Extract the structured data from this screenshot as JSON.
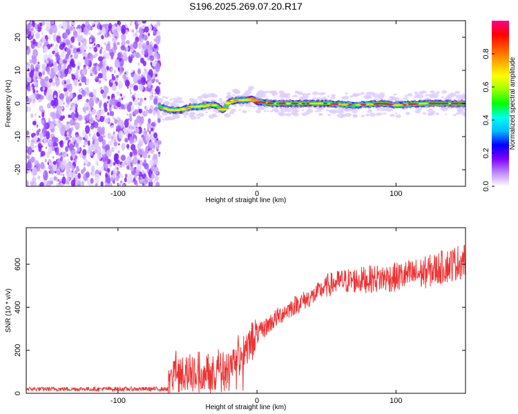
{
  "title": "S196.2025.269.07.20.R17",
  "chart_data": [
    {
      "type": "heatmap",
      "name": "spectrogram",
      "xlabel": "Height of straight line (km)",
      "ylabel": "Frequency (Hz)",
      "xlim": [
        -166,
        150
      ],
      "ylim": [
        -25,
        25
      ],
      "xticks": [
        -100,
        0,
        100
      ],
      "yticks": [
        -20,
        -10,
        0,
        10,
        20
      ],
      "noise_region_x": [
        -166,
        -70
      ],
      "signal_start_x": -70,
      "signal_track": [
        [
          -70,
          -1
        ],
        [
          -62,
          -2
        ],
        [
          -55,
          -2
        ],
        [
          -48,
          -1
        ],
        [
          -42,
          -1
        ],
        [
          -36,
          -0.5
        ],
        [
          -30,
          -0.5
        ],
        [
          -24,
          -2
        ],
        [
          -20,
          0.5
        ],
        [
          -14,
          1
        ],
        [
          -8,
          1
        ],
        [
          -4,
          1.5
        ],
        [
          0,
          0.5
        ],
        [
          10,
          0
        ],
        [
          30,
          0
        ],
        [
          50,
          0
        ],
        [
          70,
          -0.5
        ],
        [
          90,
          0
        ],
        [
          100,
          -0.5
        ],
        [
          110,
          -0.2
        ],
        [
          120,
          0
        ],
        [
          135,
          0
        ],
        [
          150,
          0
        ]
      ],
      "colorbar": {
        "label": "Normalized spectral amplitude",
        "range": [
          0.0,
          1.0
        ],
        "ticks": [
          "0.0",
          "0.2",
          "0.4",
          "0.6",
          "0.8"
        ],
        "tick_values": [
          0.0,
          0.2,
          0.4,
          0.6,
          0.8
        ],
        "colors": [
          "#ffffff",
          "#bb88ff",
          "#7f00ff",
          "#0000ff",
          "#00bbff",
          "#00ffee",
          "#00ff00",
          "#99ff00",
          "#ffff00",
          "#ffaa00",
          "#ff5500",
          "#ff0000",
          "#ff0088"
        ]
      }
    },
    {
      "type": "line",
      "name": "snr",
      "xlabel": "Height of straight line (km)",
      "ylabel": "SNR (10 * v/v)",
      "xlim": [
        -166,
        150
      ],
      "ylim": [
        0,
        770
      ],
      "xticks": [
        -100,
        0,
        100
      ],
      "yticks": [
        0,
        200,
        400,
        600
      ],
      "color": "#ee3333",
      "trend": [
        [
          -166,
          20
        ],
        [
          -64,
          20
        ],
        [
          -62,
          90
        ],
        [
          -50,
          110
        ],
        [
          -40,
          100
        ],
        [
          -30,
          110
        ],
        [
          -20,
          140
        ],
        [
          -10,
          200
        ],
        [
          0,
          270
        ],
        [
          10,
          330
        ],
        [
          20,
          380
        ],
        [
          30,
          420
        ],
        [
          40,
          450
        ],
        [
          50,
          500
        ],
        [
          60,
          520
        ],
        [
          80,
          530
        ],
        [
          100,
          540
        ],
        [
          120,
          560
        ],
        [
          140,
          600
        ],
        [
          150,
          620
        ]
      ]
    }
  ]
}
